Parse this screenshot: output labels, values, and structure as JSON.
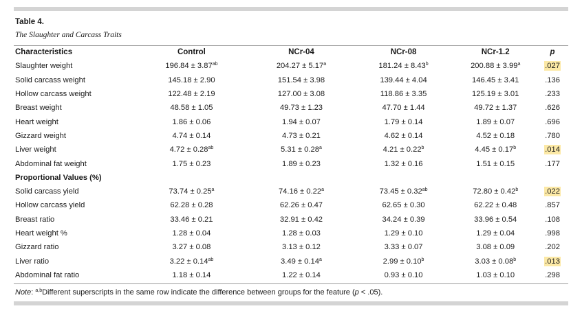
{
  "table_label": "Table 4.",
  "table_title": "The Slaughter and Carcass Traits",
  "headers": [
    "Characteristics",
    "Control",
    "NCr-04",
    "NCr-08",
    "NCr-1.2",
    "p"
  ],
  "section1_rows": [
    {
      "label": "Slaughter weight",
      "cells": [
        {
          "v": "196.84 ± 3.87",
          "s": "ab"
        },
        {
          "v": "204.27 ± 5.17",
          "s": "a"
        },
        {
          "v": "181.24 ± 8.43",
          "s": "b"
        },
        {
          "v": "200.88 ± 3.99",
          "s": "a"
        }
      ],
      "p": ".027",
      "highlight": true
    },
    {
      "label": "Solid carcass weight",
      "cells": [
        {
          "v": "145.18 ± 2.90",
          "s": ""
        },
        {
          "v": "151.54 ± 3.98",
          "s": ""
        },
        {
          "v": "139.44 ± 4.04",
          "s": ""
        },
        {
          "v": "146.45 ± 3.41",
          "s": ""
        }
      ],
      "p": ".136",
      "highlight": false
    },
    {
      "label": "Hollow carcass weight",
      "cells": [
        {
          "v": "122.48 ± 2.19",
          "s": ""
        },
        {
          "v": "127.00 ± 3.08",
          "s": ""
        },
        {
          "v": "118.86 ± 3.35",
          "s": ""
        },
        {
          "v": "125.19 ± 3.01",
          "s": ""
        }
      ],
      "p": ".233",
      "highlight": false
    },
    {
      "label": "Breast weight",
      "cells": [
        {
          "v": "48.58 ± 1.05",
          "s": ""
        },
        {
          "v": "49.73 ± 1.23",
          "s": ""
        },
        {
          "v": "47.70 ± 1.44",
          "s": ""
        },
        {
          "v": "49.72 ± 1.37",
          "s": ""
        }
      ],
      "p": ".626",
      "highlight": false
    },
    {
      "label": "Heart weight",
      "cells": [
        {
          "v": "1.86 ± 0.06",
          "s": ""
        },
        {
          "v": "1.94 ± 0.07",
          "s": ""
        },
        {
          "v": "1.79 ± 0.14",
          "s": ""
        },
        {
          "v": "1.89 ± 0.07",
          "s": ""
        }
      ],
      "p": ".696",
      "highlight": false
    },
    {
      "label": "Gizzard weight",
      "cells": [
        {
          "v": "4.74 ± 0.14",
          "s": ""
        },
        {
          "v": "4.73 ± 0.21",
          "s": ""
        },
        {
          "v": "4.62 ± 0.14",
          "s": ""
        },
        {
          "v": "4.52 ± 0.18",
          "s": ""
        }
      ],
      "p": ".780",
      "highlight": false
    },
    {
      "label": "Liver weight",
      "cells": [
        {
          "v": "4.72 ± 0.28",
          "s": "ab"
        },
        {
          "v": "5.31 ± 0.28",
          "s": "a"
        },
        {
          "v": "4.21 ± 0.22",
          "s": "b"
        },
        {
          "v": "4.45 ± 0.17",
          "s": "b"
        }
      ],
      "p": ".014",
      "highlight": true
    },
    {
      "label": "Abdominal fat weight",
      "cells": [
        {
          "v": "1.75 ± 0.23",
          "s": ""
        },
        {
          "v": "1.89 ± 0.23",
          "s": ""
        },
        {
          "v": "1.32 ± 0.16",
          "s": ""
        },
        {
          "v": "1.51 ± 0.15",
          "s": ""
        }
      ],
      "p": ".177",
      "highlight": false
    }
  ],
  "section2_title": "Proportional Values (%)",
  "section2_rows": [
    {
      "label": "Solid carcass yield",
      "cells": [
        {
          "v": "73.74 ± 0.25",
          "s": "a"
        },
        {
          "v": "74.16 ± 0.22",
          "s": "a"
        },
        {
          "v": "73.45 ± 0.32",
          "s": "ab"
        },
        {
          "v": "72.80 ± 0.42",
          "s": "b"
        }
      ],
      "p": ".022",
      "highlight": true
    },
    {
      "label": "Hollow carcass yield",
      "cells": [
        {
          "v": "62.28 ± 0.28",
          "s": ""
        },
        {
          "v": "62.26 ± 0.47",
          "s": ""
        },
        {
          "v": "62.65 ± 0.30",
          "s": ""
        },
        {
          "v": "62.22 ± 0.48",
          "s": ""
        }
      ],
      "p": ".857",
      "highlight": false
    },
    {
      "label": "Breast ratio",
      "cells": [
        {
          "v": "33.46 ± 0.21",
          "s": ""
        },
        {
          "v": "32.91 ± 0.42",
          "s": ""
        },
        {
          "v": "34.24 ± 0.39",
          "s": ""
        },
        {
          "v": "33.96 ± 0.54",
          "s": ""
        }
      ],
      "p": ".108",
      "highlight": false
    },
    {
      "label": "Heart weight %",
      "cells": [
        {
          "v": "1.28 ± 0.04",
          "s": ""
        },
        {
          "v": "1.28 ± 0.03",
          "s": ""
        },
        {
          "v": "1.29 ± 0.10",
          "s": ""
        },
        {
          "v": "1.29 ± 0.04",
          "s": ""
        }
      ],
      "p": ".998",
      "highlight": false
    },
    {
      "label": "Gizzard ratio",
      "cells": [
        {
          "v": "3.27 ± 0.08",
          "s": ""
        },
        {
          "v": "3.13 ± 0.12",
          "s": ""
        },
        {
          "v": "3.33 ± 0.07",
          "s": ""
        },
        {
          "v": "3.08 ± 0.09",
          "s": ""
        }
      ],
      "p": ".202",
      "highlight": false
    },
    {
      "label": "Liver ratio",
      "cells": [
        {
          "v": "3.22 ± 0.14",
          "s": "ab"
        },
        {
          "v": "3.49 ± 0.14",
          "s": "a"
        },
        {
          "v": "2.99 ± 0.10",
          "s": "b"
        },
        {
          "v": "3.03 ± 0.08",
          "s": "b"
        }
      ],
      "p": ".013",
      "highlight": true
    },
    {
      "label": "Abdominal fat ratio",
      "cells": [
        {
          "v": "1.18 ± 0.14",
          "s": ""
        },
        {
          "v": "1.22 ± 0.14",
          "s": ""
        },
        {
          "v": "0.93 ± 0.10",
          "s": ""
        },
        {
          "v": "1.03 ± 0.10",
          "s": ""
        }
      ],
      "p": ".298",
      "highlight": false
    }
  ],
  "note": {
    "prefix": "Note",
    "superscript": "a,b",
    "text": "Different superscripts in the same row indicate the difference between groups for the feature (",
    "p_symbol": "p",
    "suffix": " < .05)."
  },
  "colors": {
    "highlight": "#fce9a6",
    "rule_gray": "#d4d4d4"
  }
}
